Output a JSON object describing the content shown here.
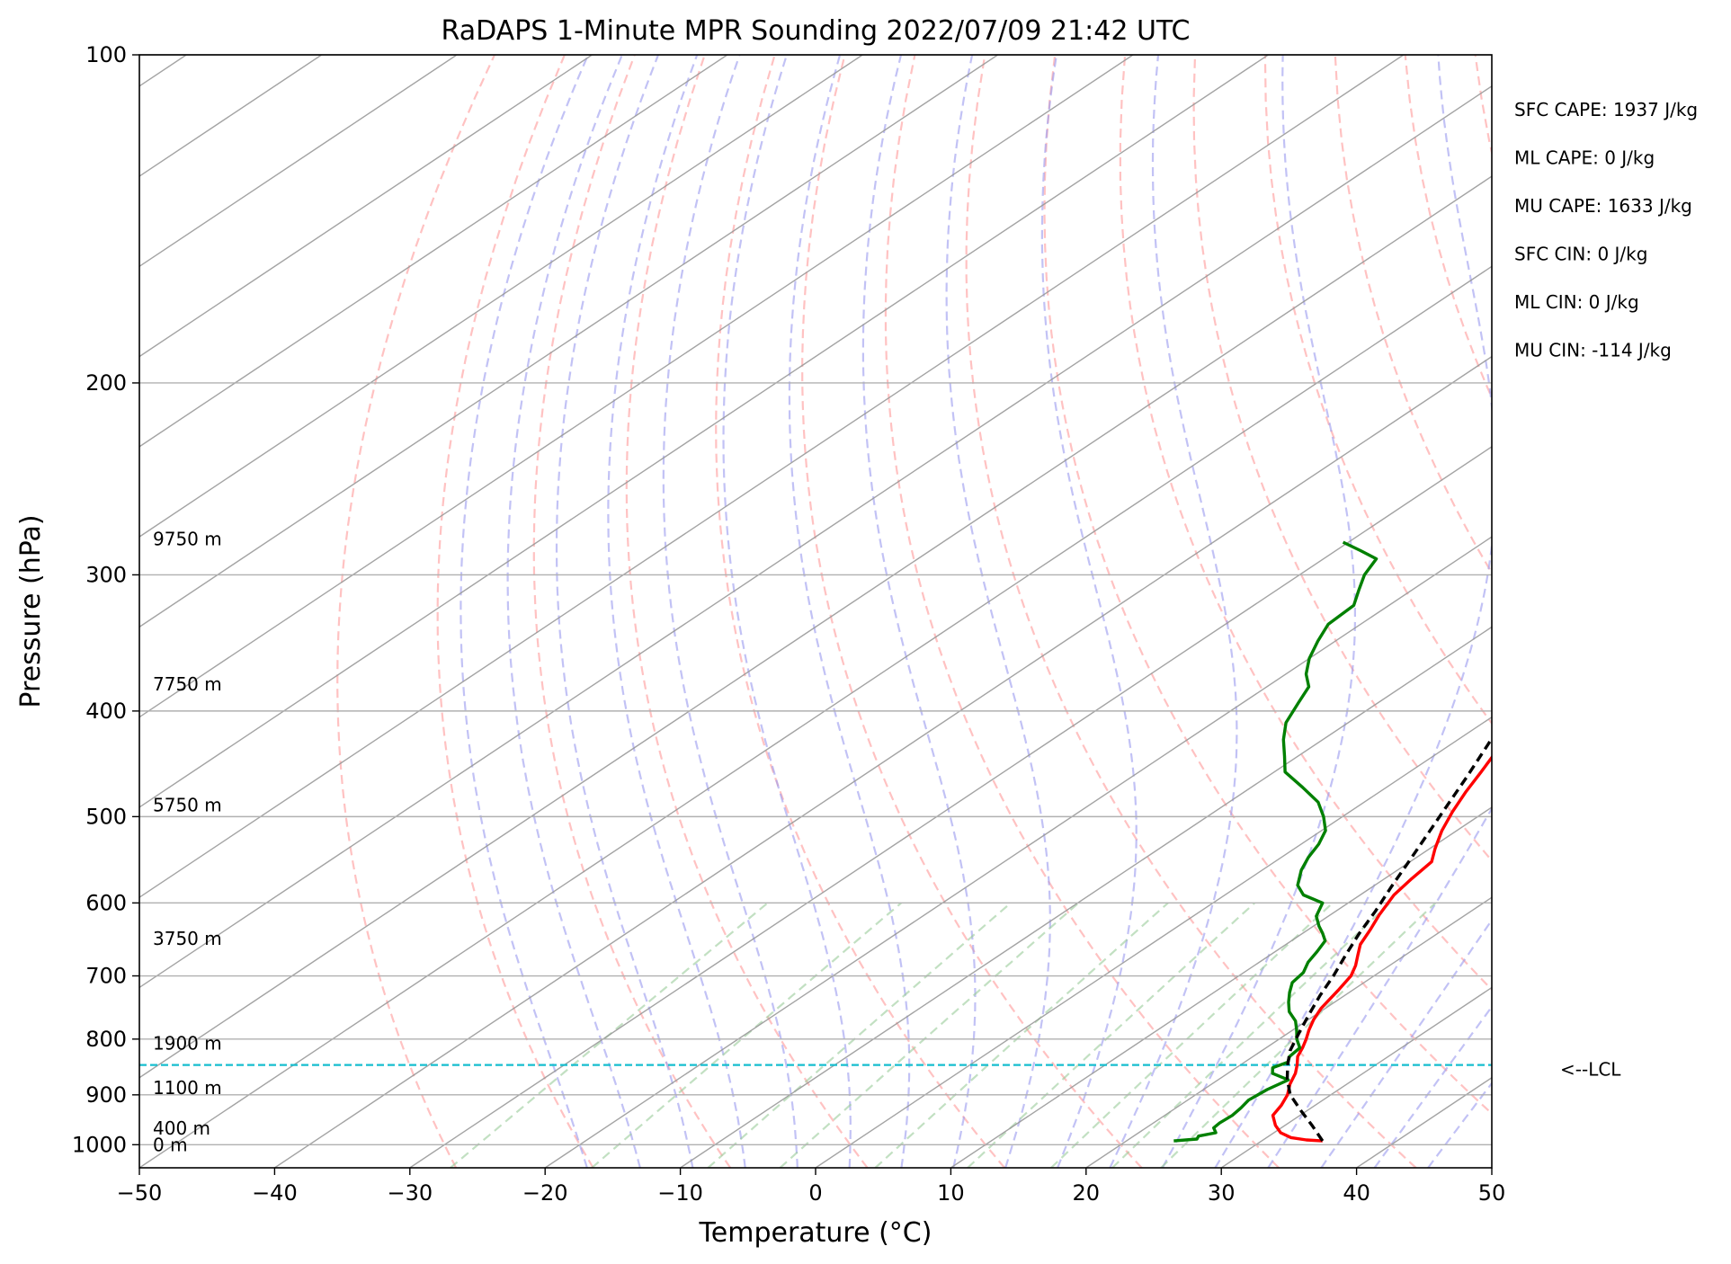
{
  "chart_data": {
    "type": "skew-t",
    "title": "RaDAPS 1-Minute MPR Sounding 2022/07/09 21:42 UTC",
    "xlabel": "Temperature (°C)",
    "ylabel": "Pressure (hPa)",
    "xlim": [
      -50,
      50
    ],
    "ylim": [
      1050,
      100
    ],
    "yscale": "log",
    "x_ticks": [
      -50,
      -40,
      -30,
      -20,
      -10,
      0,
      10,
      20,
      30,
      40,
      50
    ],
    "x_tick_labels": [
      "−50",
      "−40",
      "−30",
      "−20",
      "−10",
      "0",
      "10",
      "20",
      "30",
      "40",
      "50"
    ],
    "y_ticks": [
      100,
      200,
      300,
      400,
      500,
      600,
      700,
      800,
      900,
      1000
    ],
    "y_tick_labels": [
      "100",
      "200",
      "300",
      "400",
      "500",
      "600",
      "700",
      "800",
      "900",
      "1000"
    ],
    "grid": true,
    "colors": {
      "temperature": "#ff0000",
      "dewpoint": "#008000",
      "parcel": "#000000",
      "lcl_line": "#17becf",
      "dry_adiabats": "#ff9999",
      "moist_adiabats": "#9999ee",
      "mixing_ratio": "#99cc99",
      "isotherms": "#999999"
    },
    "series": [
      {
        "name": "Temperature",
        "points": [
          [
            34.5,
            992
          ],
          [
            33.2,
            990
          ],
          [
            31.8,
            985
          ],
          [
            30.5,
            975
          ],
          [
            29.3,
            960
          ],
          [
            28.0,
            940
          ],
          [
            27.5,
            920
          ],
          [
            26.8,
            900
          ],
          [
            25.8,
            880
          ],
          [
            25.0,
            860
          ],
          [
            24.2,
            845
          ],
          [
            23.3,
            830
          ],
          [
            22.7,
            815
          ],
          [
            22.0,
            800
          ],
          [
            21.2,
            785
          ],
          [
            20.4,
            768
          ],
          [
            19.7,
            750
          ],
          [
            19.3,
            735
          ],
          [
            18.9,
            720
          ],
          [
            18.3,
            700
          ],
          [
            17.5,
            685
          ],
          [
            16.5,
            670
          ],
          [
            15.5,
            655
          ],
          [
            14.6,
            635
          ],
          [
            13.6,
            615
          ],
          [
            12.5,
            590
          ],
          [
            12.0,
            570
          ],
          [
            11.6,
            550
          ],
          [
            10.4,
            535
          ],
          [
            8.9,
            515
          ],
          [
            7.6,
            495
          ],
          [
            6.4,
            475
          ],
          [
            5.3,
            455
          ],
          [
            4.4,
            440
          ],
          [
            3.4,
            425
          ],
          [
            2.6,
            408
          ],
          [
            1.5,
            397
          ],
          [
            0.3,
            386
          ],
          [
            -0.9,
            375
          ],
          [
            -2.3,
            362
          ],
          [
            -3.4,
            350
          ],
          [
            -4.8,
            336
          ],
          [
            -5.9,
            324
          ],
          [
            -6.7,
            313
          ],
          [
            -7.9,
            300
          ],
          [
            -8.9,
            290
          ],
          [
            -10.0,
            280
          ]
        ]
      },
      {
        "name": "Dewpoint",
        "points": [
          [
            23.5,
            992
          ],
          [
            25.0,
            988
          ],
          [
            24.8,
            982
          ],
          [
            25.7,
            975
          ],
          [
            25.0,
            965
          ],
          [
            24.9,
            955
          ],
          [
            25.0,
            940
          ],
          [
            24.8,
            925
          ],
          [
            24.5,
            910
          ],
          [
            24.7,
            890
          ],
          [
            25.2,
            872
          ],
          [
            23.3,
            860
          ],
          [
            22.7,
            850
          ],
          [
            23.2,
            840
          ],
          [
            22.7,
            830
          ],
          [
            22.5,
            815
          ],
          [
            21.3,
            800
          ],
          [
            20.3,
            785
          ],
          [
            19.2,
            770
          ],
          [
            17.7,
            755
          ],
          [
            16.6,
            740
          ],
          [
            15.6,
            725
          ],
          [
            14.7,
            710
          ],
          [
            14.4,
            695
          ],
          [
            13.6,
            680
          ],
          [
            13.1,
            665
          ],
          [
            12.5,
            650
          ],
          [
            11.5,
            640
          ],
          [
            10.4,
            630
          ],
          [
            9.1,
            617
          ],
          [
            8.1,
            600
          ],
          [
            5.8,
            590
          ],
          [
            4.3,
            578
          ],
          [
            2.9,
            560
          ],
          [
            2.0,
            545
          ],
          [
            1.3,
            530
          ],
          [
            0.3,
            515
          ],
          [
            -1.4,
            500
          ],
          [
            -3.4,
            485
          ],
          [
            -6.2,
            470
          ],
          [
            -9.2,
            455
          ],
          [
            -11.0,
            440
          ],
          [
            -12.9,
            425
          ],
          [
            -14.6,
            410
          ],
          [
            -15.9,
            393
          ],
          [
            -16.9,
            380
          ],
          [
            -18.5,
            370
          ],
          [
            -20.0,
            358
          ],
          [
            -21.3,
            345
          ],
          [
            -22.4,
            333
          ],
          [
            -22.6,
            320
          ],
          [
            -23.9,
            310
          ],
          [
            -25.2,
            300
          ],
          [
            -26.1,
            290
          ],
          [
            -28.2,
            285
          ],
          [
            -30.4,
            280
          ]
        ]
      },
      {
        "name": "Parcel",
        "points": [
          [
            34.5,
            992
          ],
          [
            32.0,
            960
          ],
          [
            29.5,
            930
          ],
          [
            27.0,
            900
          ],
          [
            25.0,
            870
          ],
          [
            23.5,
            845
          ],
          [
            22.1,
            820
          ],
          [
            20.8,
            790
          ],
          [
            19.5,
            760
          ],
          [
            18.2,
            730
          ],
          [
            17.0,
            700
          ],
          [
            15.6,
            670
          ],
          [
            14.2,
            640
          ],
          [
            12.9,
            610
          ],
          [
            11.4,
            580
          ],
          [
            9.9,
            550
          ],
          [
            8.3,
            520
          ],
          [
            6.6,
            490
          ],
          [
            4.8,
            460
          ],
          [
            2.8,
            430
          ],
          [
            0.6,
            400
          ],
          [
            -1.8,
            370
          ],
          [
            -4.4,
            340
          ],
          [
            -7.1,
            310
          ],
          [
            -9.7,
            290
          ],
          [
            -11.7,
            280
          ]
        ]
      }
    ],
    "lcl": {
      "pressure": 845,
      "label": "<--LCL"
    },
    "height_labels": [
      {
        "text": "9750 m",
        "pressure": 278
      },
      {
        "text": "7750 m",
        "pressure": 378
      },
      {
        "text": "5750 m",
        "pressure": 488
      },
      {
        "text": "3750 m",
        "pressure": 647
      },
      {
        "text": "1900 m",
        "pressure": 807
      },
      {
        "text": "1100 m",
        "pressure": 887
      },
      {
        "text": "400 m",
        "pressure": 966
      },
      {
        "text": "0 m",
        "pressure": 1000
      }
    ],
    "indices": [
      "SFC CAPE: 1937 J/kg",
      "ML CAPE: 0 J/kg",
      "MU CAPE: 1633 J/kg",
      "SFC CIN: 0 J/kg",
      "ML CIN: 0 J/kg",
      "MU CIN: -114 J/kg"
    ]
  }
}
